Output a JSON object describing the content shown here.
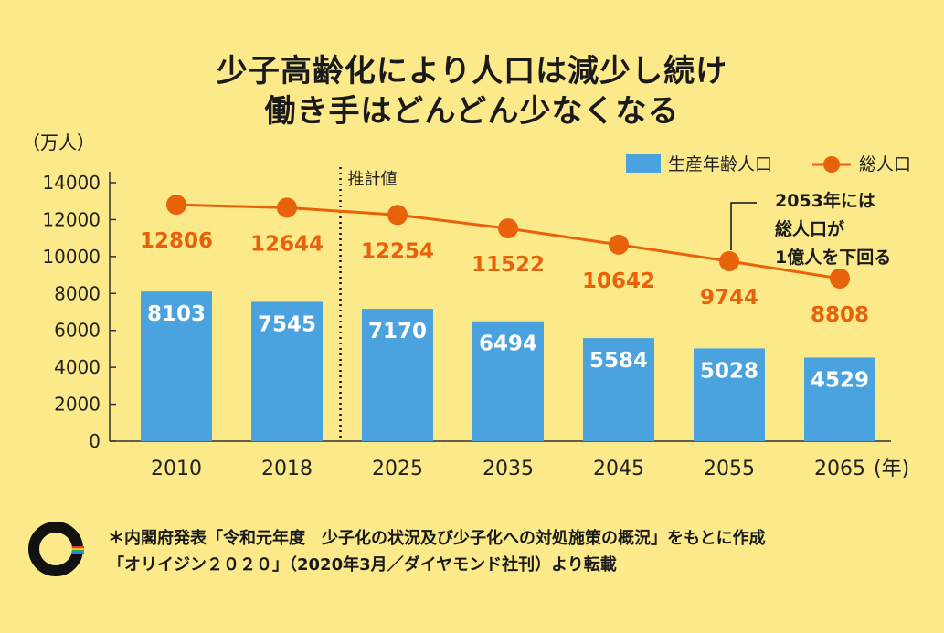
{
  "title": {
    "line1": "少子高齢化により人口は減少し続け",
    "line2": "働き手はどんどん少なくなる"
  },
  "y_unit": "（万人）",
  "x_unit": "(年)",
  "estimate_label": "推計値",
  "legend": {
    "bar": "生産年齢人口",
    "line": "総人口"
  },
  "annotation": [
    "2053年には",
    "総人口が",
    "1億人を下回る"
  ],
  "footer": {
    "line1": "＊内閣府発表「令和元年度　少子化の状況及び少子化への対処施策の概況」をもとに作成",
    "line2": "「オリイジン２０２０」（2020年3月／ダイヤモンド社刊）より転載"
  },
  "colors": {
    "background": "#fbe98a",
    "bar": "#4aa3df",
    "line": "#e8620c"
  },
  "chart_data": {
    "type": "bar",
    "categories": [
      "2010",
      "2018",
      "2025",
      "2035",
      "2045",
      "2055",
      "2065"
    ],
    "series": [
      {
        "name": "生産年齢人口",
        "type": "bar",
        "values": [
          8103,
          7545,
          7170,
          6494,
          5584,
          5028,
          4529
        ]
      },
      {
        "name": "総人口",
        "type": "line",
        "values": [
          12806,
          12644,
          12254,
          11522,
          10642,
          9744,
          8808
        ]
      }
    ],
    "y_ticks": [
      0,
      2000,
      4000,
      6000,
      8000,
      10000,
      12000,
      14000
    ],
    "ylim": [
      0,
      14000
    ],
    "estimate_from_index": 2,
    "annotation_category": "2055",
    "legend_position": "top-right"
  }
}
